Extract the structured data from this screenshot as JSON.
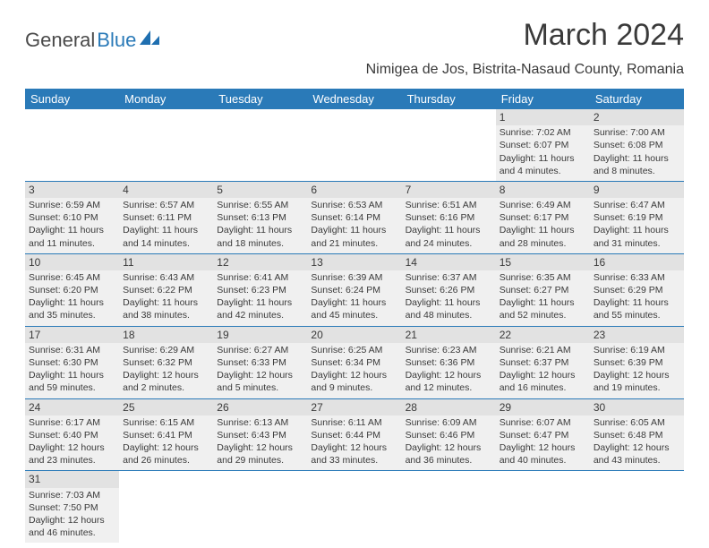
{
  "logo": {
    "part1": "General",
    "part2": "Blue"
  },
  "title": "March 2024",
  "location": "Nimigea de Jos, Bistrita-Nasaud County, Romania",
  "day_headers": [
    "Sunday",
    "Monday",
    "Tuesday",
    "Wednesday",
    "Thursday",
    "Friday",
    "Saturday"
  ],
  "colors": {
    "header_bg": "#2a7ab8",
    "header_fg": "#ffffff",
    "row_bg": "#f0f0f0",
    "daynum_bg": "#e2e2e2",
    "text": "#3a3a3a",
    "rule": "#2a7ab8"
  },
  "weeks": [
    [
      null,
      null,
      null,
      null,
      null,
      {
        "n": "1",
        "sr": "Sunrise: 7:02 AM",
        "ss": "Sunset: 6:07 PM",
        "dl1": "Daylight: 11 hours",
        "dl2": "and 4 minutes."
      },
      {
        "n": "2",
        "sr": "Sunrise: 7:00 AM",
        "ss": "Sunset: 6:08 PM",
        "dl1": "Daylight: 11 hours",
        "dl2": "and 8 minutes."
      }
    ],
    [
      {
        "n": "3",
        "sr": "Sunrise: 6:59 AM",
        "ss": "Sunset: 6:10 PM",
        "dl1": "Daylight: 11 hours",
        "dl2": "and 11 minutes."
      },
      {
        "n": "4",
        "sr": "Sunrise: 6:57 AM",
        "ss": "Sunset: 6:11 PM",
        "dl1": "Daylight: 11 hours",
        "dl2": "and 14 minutes."
      },
      {
        "n": "5",
        "sr": "Sunrise: 6:55 AM",
        "ss": "Sunset: 6:13 PM",
        "dl1": "Daylight: 11 hours",
        "dl2": "and 18 minutes."
      },
      {
        "n": "6",
        "sr": "Sunrise: 6:53 AM",
        "ss": "Sunset: 6:14 PM",
        "dl1": "Daylight: 11 hours",
        "dl2": "and 21 minutes."
      },
      {
        "n": "7",
        "sr": "Sunrise: 6:51 AM",
        "ss": "Sunset: 6:16 PM",
        "dl1": "Daylight: 11 hours",
        "dl2": "and 24 minutes."
      },
      {
        "n": "8",
        "sr": "Sunrise: 6:49 AM",
        "ss": "Sunset: 6:17 PM",
        "dl1": "Daylight: 11 hours",
        "dl2": "and 28 minutes."
      },
      {
        "n": "9",
        "sr": "Sunrise: 6:47 AM",
        "ss": "Sunset: 6:19 PM",
        "dl1": "Daylight: 11 hours",
        "dl2": "and 31 minutes."
      }
    ],
    [
      {
        "n": "10",
        "sr": "Sunrise: 6:45 AM",
        "ss": "Sunset: 6:20 PM",
        "dl1": "Daylight: 11 hours",
        "dl2": "and 35 minutes."
      },
      {
        "n": "11",
        "sr": "Sunrise: 6:43 AM",
        "ss": "Sunset: 6:22 PM",
        "dl1": "Daylight: 11 hours",
        "dl2": "and 38 minutes."
      },
      {
        "n": "12",
        "sr": "Sunrise: 6:41 AM",
        "ss": "Sunset: 6:23 PM",
        "dl1": "Daylight: 11 hours",
        "dl2": "and 42 minutes."
      },
      {
        "n": "13",
        "sr": "Sunrise: 6:39 AM",
        "ss": "Sunset: 6:24 PM",
        "dl1": "Daylight: 11 hours",
        "dl2": "and 45 minutes."
      },
      {
        "n": "14",
        "sr": "Sunrise: 6:37 AM",
        "ss": "Sunset: 6:26 PM",
        "dl1": "Daylight: 11 hours",
        "dl2": "and 48 minutes."
      },
      {
        "n": "15",
        "sr": "Sunrise: 6:35 AM",
        "ss": "Sunset: 6:27 PM",
        "dl1": "Daylight: 11 hours",
        "dl2": "and 52 minutes."
      },
      {
        "n": "16",
        "sr": "Sunrise: 6:33 AM",
        "ss": "Sunset: 6:29 PM",
        "dl1": "Daylight: 11 hours",
        "dl2": "and 55 minutes."
      }
    ],
    [
      {
        "n": "17",
        "sr": "Sunrise: 6:31 AM",
        "ss": "Sunset: 6:30 PM",
        "dl1": "Daylight: 11 hours",
        "dl2": "and 59 minutes."
      },
      {
        "n": "18",
        "sr": "Sunrise: 6:29 AM",
        "ss": "Sunset: 6:32 PM",
        "dl1": "Daylight: 12 hours",
        "dl2": "and 2 minutes."
      },
      {
        "n": "19",
        "sr": "Sunrise: 6:27 AM",
        "ss": "Sunset: 6:33 PM",
        "dl1": "Daylight: 12 hours",
        "dl2": "and 5 minutes."
      },
      {
        "n": "20",
        "sr": "Sunrise: 6:25 AM",
        "ss": "Sunset: 6:34 PM",
        "dl1": "Daylight: 12 hours",
        "dl2": "and 9 minutes."
      },
      {
        "n": "21",
        "sr": "Sunrise: 6:23 AM",
        "ss": "Sunset: 6:36 PM",
        "dl1": "Daylight: 12 hours",
        "dl2": "and 12 minutes."
      },
      {
        "n": "22",
        "sr": "Sunrise: 6:21 AM",
        "ss": "Sunset: 6:37 PM",
        "dl1": "Daylight: 12 hours",
        "dl2": "and 16 minutes."
      },
      {
        "n": "23",
        "sr": "Sunrise: 6:19 AM",
        "ss": "Sunset: 6:39 PM",
        "dl1": "Daylight: 12 hours",
        "dl2": "and 19 minutes."
      }
    ],
    [
      {
        "n": "24",
        "sr": "Sunrise: 6:17 AM",
        "ss": "Sunset: 6:40 PM",
        "dl1": "Daylight: 12 hours",
        "dl2": "and 23 minutes."
      },
      {
        "n": "25",
        "sr": "Sunrise: 6:15 AM",
        "ss": "Sunset: 6:41 PM",
        "dl1": "Daylight: 12 hours",
        "dl2": "and 26 minutes."
      },
      {
        "n": "26",
        "sr": "Sunrise: 6:13 AM",
        "ss": "Sunset: 6:43 PM",
        "dl1": "Daylight: 12 hours",
        "dl2": "and 29 minutes."
      },
      {
        "n": "27",
        "sr": "Sunrise: 6:11 AM",
        "ss": "Sunset: 6:44 PM",
        "dl1": "Daylight: 12 hours",
        "dl2": "and 33 minutes."
      },
      {
        "n": "28",
        "sr": "Sunrise: 6:09 AM",
        "ss": "Sunset: 6:46 PM",
        "dl1": "Daylight: 12 hours",
        "dl2": "and 36 minutes."
      },
      {
        "n": "29",
        "sr": "Sunrise: 6:07 AM",
        "ss": "Sunset: 6:47 PM",
        "dl1": "Daylight: 12 hours",
        "dl2": "and 40 minutes."
      },
      {
        "n": "30",
        "sr": "Sunrise: 6:05 AM",
        "ss": "Sunset: 6:48 PM",
        "dl1": "Daylight: 12 hours",
        "dl2": "and 43 minutes."
      }
    ],
    [
      {
        "n": "31",
        "sr": "Sunrise: 7:03 AM",
        "ss": "Sunset: 7:50 PM",
        "dl1": "Daylight: 12 hours",
        "dl2": "and 46 minutes."
      },
      null,
      null,
      null,
      null,
      null,
      null
    ]
  ]
}
